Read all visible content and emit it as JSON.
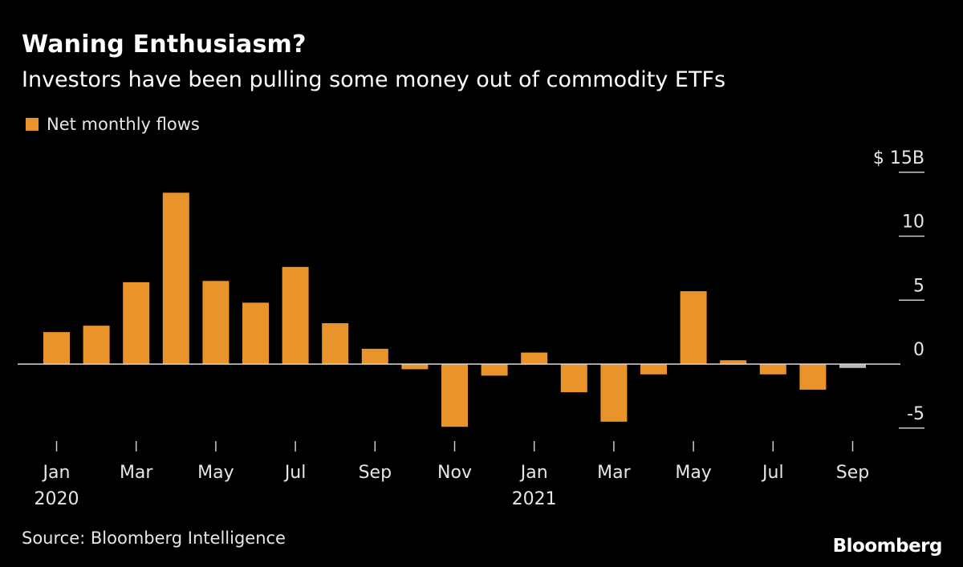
{
  "header": {
    "title": "Waning Enthusiasm?",
    "subtitle": "Investors have been pulling some money out of commodity ETFs"
  },
  "legend": {
    "label": "Net monthly flows"
  },
  "footer": {
    "source": "Source: Bloomberg Intelligence",
    "brand": "Bloomberg"
  },
  "colors": {
    "background": "#000000",
    "bar": "#e8942a",
    "bar_partial": "#b8b8b8",
    "axis": "#cccccc",
    "text": "#ffffff"
  },
  "chart_data": {
    "type": "bar",
    "title": "Waning Enthusiasm?",
    "subtitle": "Investors have been pulling some money out of commodity ETFs",
    "xlabel": "",
    "ylabel": "",
    "y_unit_prefix": "$",
    "y_unit_suffix": "B",
    "ylim": [
      -5,
      15
    ],
    "yticks": [
      -5,
      0,
      5,
      10,
      15
    ],
    "ytick_labels": [
      "-5",
      "0",
      "5",
      "10",
      "$ 15B"
    ],
    "grid": false,
    "legend_position": "top-left",
    "categories": [
      "Jan 2020",
      "Feb 2020",
      "Mar 2020",
      "Apr 2020",
      "May 2020",
      "Jun 2020",
      "Jul 2020",
      "Aug 2020",
      "Sep 2020",
      "Oct 2020",
      "Nov 2020",
      "Dec 2020",
      "Jan 2021",
      "Feb 2021",
      "Mar 2021",
      "Apr 2021",
      "May 2021",
      "Jun 2021",
      "Jul 2021",
      "Aug 2021",
      "Sep 2021"
    ],
    "series": [
      {
        "name": "Net monthly flows",
        "values": [
          2.5,
          3.0,
          6.4,
          13.4,
          6.5,
          4.8,
          7.6,
          3.2,
          1.2,
          -0.4,
          -4.9,
          -0.9,
          0.9,
          -2.2,
          -4.5,
          -0.8,
          5.7,
          0.3,
          -0.8,
          -2.0,
          -0.3
        ]
      }
    ],
    "partial_last_bar": true,
    "x_tick_labels": [
      {
        "index": 0,
        "month": "Jan",
        "year": "2020"
      },
      {
        "index": 2,
        "month": "Mar",
        "year": ""
      },
      {
        "index": 4,
        "month": "May",
        "year": ""
      },
      {
        "index": 6,
        "month": "Jul",
        "year": ""
      },
      {
        "index": 8,
        "month": "Sep",
        "year": ""
      },
      {
        "index": 10,
        "month": "Nov",
        "year": ""
      },
      {
        "index": 12,
        "month": "Jan",
        "year": "2021"
      },
      {
        "index": 14,
        "month": "Mar",
        "year": ""
      },
      {
        "index": 16,
        "month": "May",
        "year": ""
      },
      {
        "index": 18,
        "month": "Jul",
        "year": ""
      },
      {
        "index": 20,
        "month": "Sep",
        "year": ""
      }
    ]
  }
}
